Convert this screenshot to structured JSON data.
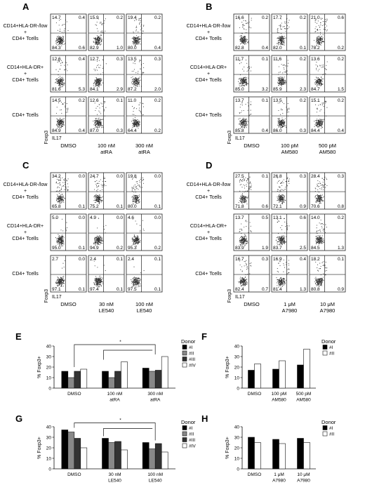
{
  "figure": {
    "flow_panels": [
      {
        "letter": "A",
        "rows": [
          "CD14+HLA-DR-/low + CD4+ Tcells",
          "CD14+HLA-DR+ + CD4+ Tcells",
          "CD4+ Tcells"
        ],
        "cols": [
          [
            "DMSO"
          ],
          [
            "100 nM",
            "atRA"
          ],
          [
            "300 nM",
            "atRA"
          ]
        ],
        "xlabel": "IL17",
        "ylabel": "Foxp3",
        "quads": [
          [
            [
              "14.7",
              "0.4",
              "84.3",
              "0.6"
            ],
            [
              "15.9",
              "0.2",
              "82.9",
              "1.0"
            ],
            [
              "19.4",
              "0.2",
              "80.0",
              "0.4"
            ]
          ],
          [
            [
              "12.6",
              "0.4",
              "81.6",
              "5.3"
            ],
            [
              "12.7",
              "0.3",
              "84.1",
              "2.9"
            ],
            [
              "13.5",
              "0.3",
              "87.2",
              "2.0"
            ]
          ],
          [
            [
              "14.5",
              "0.2",
              "84.9",
              "0.4"
            ],
            [
              "12.6",
              "0.1",
              "87.0",
              "0.3"
            ],
            [
              "11.0",
              "0.2",
              "64.4",
              "0.2"
            ]
          ]
        ]
      },
      {
        "letter": "B",
        "rows": [
          "CD14+HLA-DR-/low + CD4+ Tcells",
          "CD14+HLA-DR+ + CD4+ Tcells",
          "CD4+ Tcells"
        ],
        "cols": [
          [
            "DMSO"
          ],
          [
            "100 pM",
            "AM580"
          ],
          [
            "500 pM",
            "AM580"
          ]
        ],
        "xlabel": "IL17",
        "ylabel": "Foxp3",
        "quads": [
          [
            [
              "16.6",
              "0.2",
              "82.8",
              "0.4"
            ],
            [
              "17.7",
              "0.2",
              "82.0",
              "0.1"
            ],
            [
              "21.0",
              "0.6",
              "78.2",
              "0.2"
            ]
          ],
          [
            [
              "11.7",
              "0.1",
              "85.0",
              "3.2"
            ],
            [
              "11.6",
              "0.2",
              "85.9",
              "2.3"
            ],
            [
              "13.6",
              "0.2",
              "84.7",
              "1.5"
            ]
          ],
          [
            [
              "13.7",
              "0.1",
              "85.8",
              "0.4"
            ],
            [
              "13.5",
              "0.2",
              "86.0",
              "0.3"
            ],
            [
              "15.1",
              "0.2",
              "84.4",
              "0.4"
            ]
          ]
        ]
      },
      {
        "letter": "C",
        "rows": [
          "CD14+HLA-DR-/low + CD4+ Tcells",
          "CD14+HLA-DR+ + CD4+ Tcells",
          "CD4+ Tcells"
        ],
        "cols": [
          [
            "DMSO"
          ],
          [
            "30 nM",
            "LE540"
          ],
          [
            "100 nM",
            "LE540"
          ]
        ],
        "xlabel": "IL17",
        "ylabel": "Foxp3",
        "quads": [
          [
            [
              "34.2",
              "0.0",
              "65.8",
              "0.1"
            ],
            [
              "24.7",
              "0.0",
              "75.2",
              "0.1"
            ],
            [
              "19.8",
              "0.0",
              "80.0",
              "0.1"
            ]
          ],
          [
            [
              "5.0",
              "0.0",
              "95.0",
              "0.1"
            ],
            [
              "4.9",
              "0.0",
              "94.9",
              "0.2"
            ],
            [
              "4.6",
              "0.0",
              "95.3",
              "0.2"
            ]
          ],
          [
            [
              "2.7",
              "0.0",
              "97.1",
              "0.1"
            ],
            [
              "2.4",
              "0.1",
              "97.4",
              "0.1"
            ],
            [
              "2.4",
              "0.1",
              "97.5",
              "0.1"
            ]
          ]
        ]
      },
      {
        "letter": "D",
        "rows": [
          "CD14+HLA-DR-/low + CD4+ Tcells",
          "CD14+HLA-DR+ + CD4+ Tcells",
          "CD4+ Tcells"
        ],
        "cols": [
          [
            "DMSO"
          ],
          [
            "1 μM",
            "A7980"
          ],
          [
            "10 μM",
            "A7980"
          ]
        ],
        "xlabel": "IL17",
        "ylabel": "Foxp3",
        "quads": [
          [
            [
              "27.5",
              "0.1",
              "71.8",
              "0.6"
            ],
            [
              "26.8",
              "0.3",
              "72.1",
              "0.9"
            ],
            [
              "28.4",
              "0.3",
              "70.6",
              "0.8"
            ]
          ],
          [
            [
              "13.7",
              "0.5",
              "83.9",
              "1.9"
            ],
            [
              "13.1",
              "0.6",
              "83.7",
              "2.5"
            ],
            [
              "14.0",
              "0.2",
              "84.5",
              "1.3"
            ]
          ],
          [
            [
              "16.7",
              "0.3",
              "82.4",
              "0.7"
            ],
            [
              "16.9",
              "0.4",
              "81.4",
              "1.3"
            ],
            [
              "18.2",
              "0.1",
              "80.8",
              "0.9"
            ]
          ]
        ]
      }
    ]
  },
  "chart_data": [
    {
      "panel": "E",
      "type": "bar",
      "ylabel": "% Foxp3+",
      "ylim": [
        0,
        40
      ],
      "yticks": [
        "0",
        "10",
        "20",
        "30",
        "40"
      ],
      "categories": [
        [
          "DMSO"
        ],
        [
          "100 nM",
          "atRA"
        ],
        [
          "300 nM",
          "atRA"
        ]
      ],
      "legend_title": "Donor",
      "series": [
        {
          "name": "#I",
          "values": [
            16,
            16,
            19
          ],
          "color": "#000000"
        },
        {
          "name": "#II",
          "values": [
            10,
            10,
            16
          ],
          "color": "#888888"
        },
        {
          "name": "#III",
          "values": [
            16,
            16,
            17
          ],
          "color": "#333333"
        },
        {
          "name": "#IV",
          "values": [
            18,
            25,
            30
          ],
          "color": "#ffffff"
        }
      ],
      "significance": "*"
    },
    {
      "panel": "F",
      "type": "bar",
      "ylabel": "% Foxp3+",
      "ylim": [
        0,
        40
      ],
      "yticks": [
        "0",
        "10",
        "20",
        "30",
        "40"
      ],
      "categories": [
        [
          "DMSO"
        ],
        [
          "100 pM",
          "AM580"
        ],
        [
          "500 pM",
          "AM580"
        ]
      ],
      "legend_title": "Donor",
      "series": [
        {
          "name": "#I",
          "values": [
            17,
            18,
            22
          ],
          "color": "#000000"
        },
        {
          "name": "#II",
          "values": [
            23,
            26,
            37
          ],
          "color": "#ffffff"
        }
      ]
    },
    {
      "panel": "G",
      "type": "bar",
      "ylabel": "% Foxp3+",
      "ylim": [
        0,
        40
      ],
      "yticks": [
        "0",
        "10",
        "20",
        "30",
        "40"
      ],
      "categories": [
        [
          "DMSO"
        ],
        [
          "30 nM",
          "LE540"
        ],
        [
          "100 nM",
          "LE540"
        ]
      ],
      "legend_title": "Donor",
      "series": [
        {
          "name": "#I",
          "values": [
            37,
            29,
            25
          ],
          "color": "#000000"
        },
        {
          "name": "#II",
          "values": [
            35,
            25,
            19
          ],
          "color": "#888888"
        },
        {
          "name": "#III",
          "values": [
            29,
            26,
            24
          ],
          "color": "#333333"
        },
        {
          "name": "#IV",
          "values": [
            20,
            18,
            16
          ],
          "color": "#ffffff"
        }
      ],
      "significance": "*"
    },
    {
      "panel": "H",
      "type": "bar",
      "ylabel": "% Foxp3+",
      "ylim": [
        0,
        40
      ],
      "yticks": [
        "0",
        "10",
        "20",
        "30",
        "40"
      ],
      "categories": [
        [
          "DMSO"
        ],
        [
          "1 μM",
          "A7980"
        ],
        [
          "10 μM",
          "A7980"
        ]
      ],
      "legend_title": "Donor",
      "series": [
        {
          "name": "#I",
          "values": [
            30,
            28,
            29
          ],
          "color": "#000000"
        },
        {
          "name": "#II",
          "values": [
            25,
            24,
            25
          ],
          "color": "#ffffff"
        }
      ]
    }
  ]
}
